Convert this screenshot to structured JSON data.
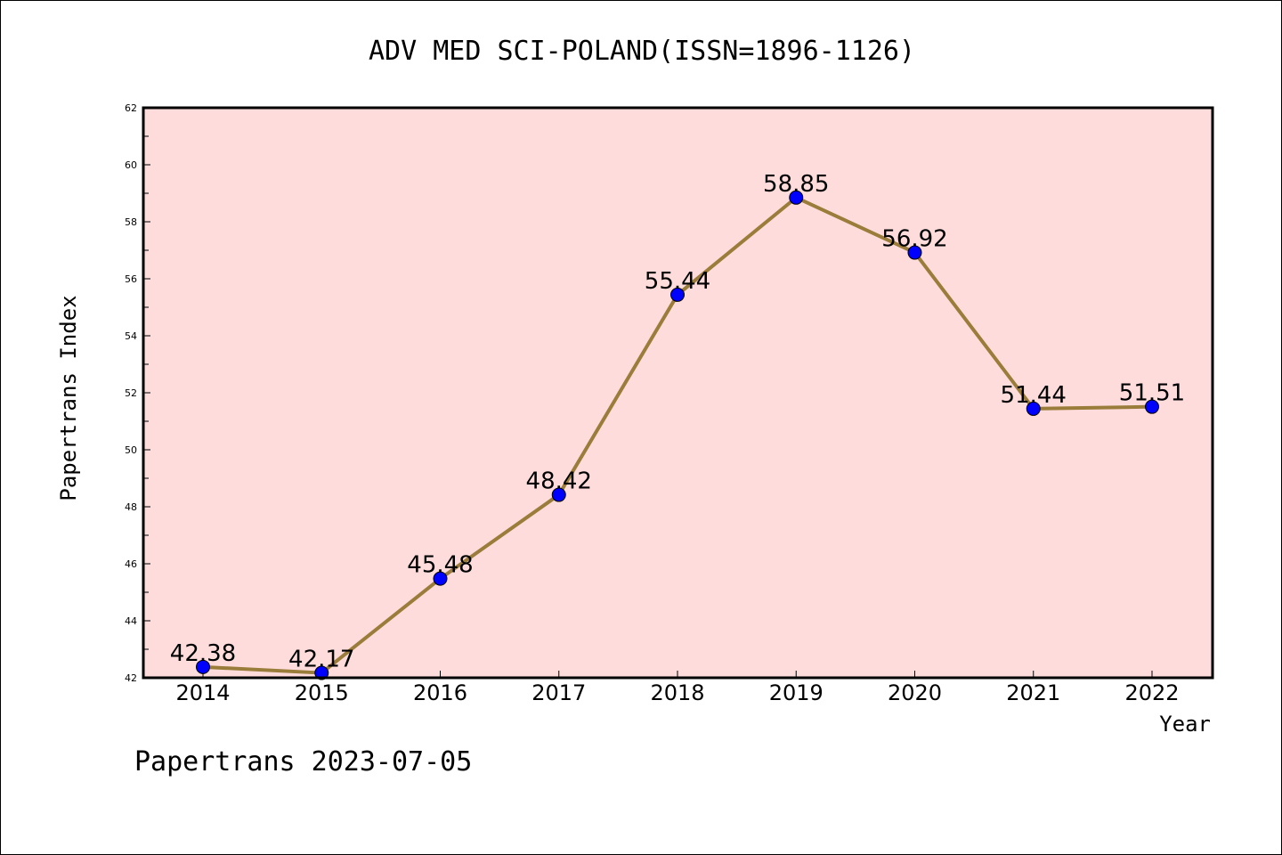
{
  "chart_data": {
    "type": "line",
    "title": "ADV MED SCI-POLAND(ISSN=1896-1126)",
    "xlabel": "Year",
    "ylabel": "Papertrans Index",
    "categories": [
      "2014",
      "2015",
      "2016",
      "2017",
      "2018",
      "2019",
      "2020",
      "2021",
      "2022"
    ],
    "values": [
      42.38,
      42.17,
      45.48,
      48.42,
      55.44,
      58.85,
      56.92,
      51.44,
      51.51
    ],
    "data_labels": [
      "42.38",
      "42.17",
      "45.48",
      "48.42",
      "55.44",
      "58.85",
      "56.92",
      "51.44",
      "51.51"
    ],
    "ylim": [
      42,
      62
    ],
    "yticks": [
      "42",
      "44",
      "46",
      "48",
      "50",
      "52",
      "54",
      "56",
      "58",
      "60",
      "62"
    ],
    "grid": false,
    "line_color": "#9a7d3a",
    "marker_color": "#0000ff",
    "plot_background": "#ffdcdc"
  },
  "footer": "Papertrans 2023-07-05"
}
